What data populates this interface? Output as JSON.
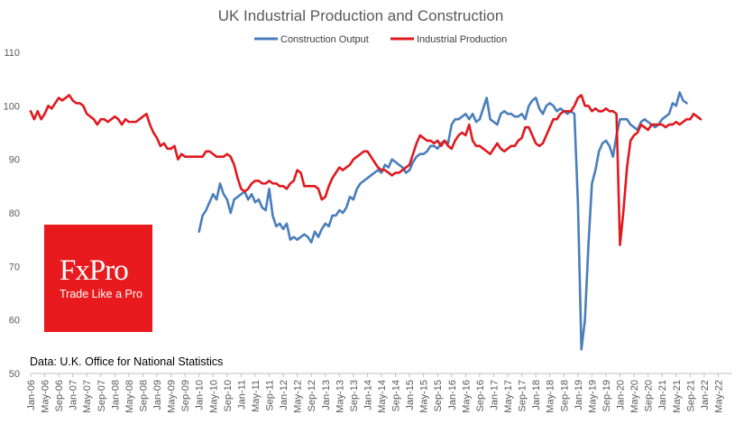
{
  "chart_data": {
    "type": "line",
    "title": "UK Industrial Production and Construction",
    "ylim": [
      50,
      110
    ],
    "yticks": [
      50,
      60,
      70,
      80,
      90,
      100,
      110
    ],
    "grid": false,
    "legend_position": "top-center",
    "x_tick_labels": [
      "Jan-06",
      "May-06",
      "Sep-06",
      "Jan-07",
      "May-07",
      "Sep-07",
      "Jan-08",
      "May-08",
      "Sep-08",
      "Jan-09",
      "May-09",
      "Sep-09",
      "Jan-10",
      "May-10",
      "Sep-10",
      "Jan-11",
      "May-11",
      "Sep-11",
      "Jan-12",
      "May-12",
      "Sep-12",
      "Jan-13",
      "May-13",
      "Sep-13",
      "Jan-14",
      "May-14",
      "Sep-14",
      "Jan-15",
      "May-15",
      "Sep-15",
      "Jan-16",
      "May-16",
      "Sep-16",
      "Jan-17",
      "May-17",
      "Sep-17",
      "Jan-18",
      "May-18",
      "Sep-18",
      "Jan-19",
      "May-19",
      "Sep-19",
      "Jan-20",
      "May-20",
      "Sep-20",
      "Jan-21",
      "May-21",
      "Sep-21",
      "Jan-22",
      "May-22"
    ],
    "x_start": "Jan-06",
    "series": [
      {
        "name": "Construction Output",
        "color": "#4a7ebb",
        "start_month_index": 48,
        "values": [
          76.5,
          79.5,
          80.5,
          82,
          83.5,
          82.5,
          85.5,
          83.5,
          82.5,
          80,
          82.5,
          83,
          83.5,
          84,
          82.5,
          83.5,
          82,
          82.5,
          81,
          80.5,
          84.5,
          79.5,
          77.5,
          78,
          77,
          78,
          75,
          75.5,
          75,
          75.5,
          76,
          75.5,
          74.5,
          76.5,
          75.5,
          77,
          78,
          77.5,
          79.5,
          79.5,
          80.5,
          80,
          81,
          83,
          82.5,
          84.5,
          85.5,
          86,
          86.5,
          87,
          87.5,
          88,
          87.5,
          89,
          88.5,
          90,
          89.5,
          89,
          88.5,
          87.5,
          88,
          89.5,
          90.5,
          91,
          91,
          91.5,
          92.5,
          92.5,
          92,
          93,
          93.5,
          93,
          96.5,
          97.5,
          97.5,
          98,
          98.5,
          97.5,
          98.5,
          97,
          97.5,
          99.5,
          101.5,
          97.5,
          97,
          96.5,
          98.5,
          99,
          98.5,
          98.5,
          98,
          98,
          98.5,
          97.5,
          100,
          101,
          101.5,
          99.5,
          98.5,
          100,
          100.5,
          100,
          99,
          99.5,
          99,
          98.5,
          99,
          98.5,
          82,
          54.5,
          60,
          74,
          85.5,
          88,
          91.5,
          93,
          93.5,
          92.5,
          90.5,
          94.5,
          97.5,
          97.5,
          97.5,
          96.5,
          96,
          95.5,
          97,
          97.5,
          97,
          96.5,
          96,
          96.5,
          97.5,
          98,
          98.5,
          100.5,
          100,
          102.5,
          101,
          100.5
        ]
      },
      {
        "name": "Industrial Production",
        "color": "#e0191f",
        "start_month_index": 0,
        "values": [
          99,
          97.5,
          99,
          97.5,
          98.5,
          100,
          99.5,
          100.5,
          101.5,
          101,
          101.5,
          102,
          101,
          100.5,
          100.5,
          100,
          98.5,
          98,
          97.5,
          96.5,
          97.5,
          97.5,
          97,
          97.5,
          98,
          97.5,
          96.5,
          97.5,
          97,
          97,
          97,
          97.5,
          98,
          98.5,
          96.5,
          95,
          94,
          92.5,
          93,
          92,
          92,
          92.5,
          90,
          91,
          90.5,
          90.5,
          90.5,
          90.5,
          90.5,
          90.5,
          91.5,
          91.5,
          91,
          90.5,
          90.5,
          90.5,
          91,
          90.5,
          89,
          86.5,
          84.5,
          84,
          84.5,
          85.5,
          86,
          86,
          85.5,
          85.5,
          86,
          85.5,
          85.5,
          85,
          85,
          84.5,
          85.5,
          86,
          88,
          87.5,
          85,
          85,
          85,
          85,
          84.5,
          82.5,
          83,
          85,
          86.5,
          87.5,
          88.5,
          88,
          88.5,
          89,
          90,
          90.5,
          91,
          91.5,
          91.5,
          90.5,
          89.5,
          88.5,
          88,
          88,
          87.5,
          87,
          87.5,
          87.5,
          88,
          88.5,
          89,
          91,
          93,
          94.5,
          94,
          93.5,
          93.5,
          93,
          93.5,
          92.5,
          93.5,
          92.5,
          92,
          93.5,
          94.5,
          95,
          94.5,
          96.5,
          93.5,
          92.5,
          92.5,
          92,
          91.5,
          91,
          92,
          93,
          92,
          91.5,
          92,
          92.5,
          92.5,
          93.5,
          94,
          96,
          96,
          94.5,
          93,
          92.5,
          93,
          94.5,
          96,
          97.5,
          97.5,
          98.5,
          99,
          99,
          99,
          100,
          101.5,
          102,
          100,
          100,
          99,
          99.5,
          99,
          99,
          99.5,
          99,
          99,
          98.5,
          74,
          80.5,
          88.5,
          93.5,
          94.5,
          95,
          96.5,
          96,
          95.5,
          96.5,
          96.5,
          96.5,
          96.5,
          96,
          96.5,
          96.5,
          97,
          96.5,
          97,
          97.5,
          97.5,
          98.5,
          98,
          97.5
        ]
      }
    ]
  },
  "source_note": "Data: U.K. Office for National Statistics",
  "logo": {
    "brand": "FxPro",
    "tagline": "Trade Like a Pro",
    "background": "#e81a1e"
  }
}
